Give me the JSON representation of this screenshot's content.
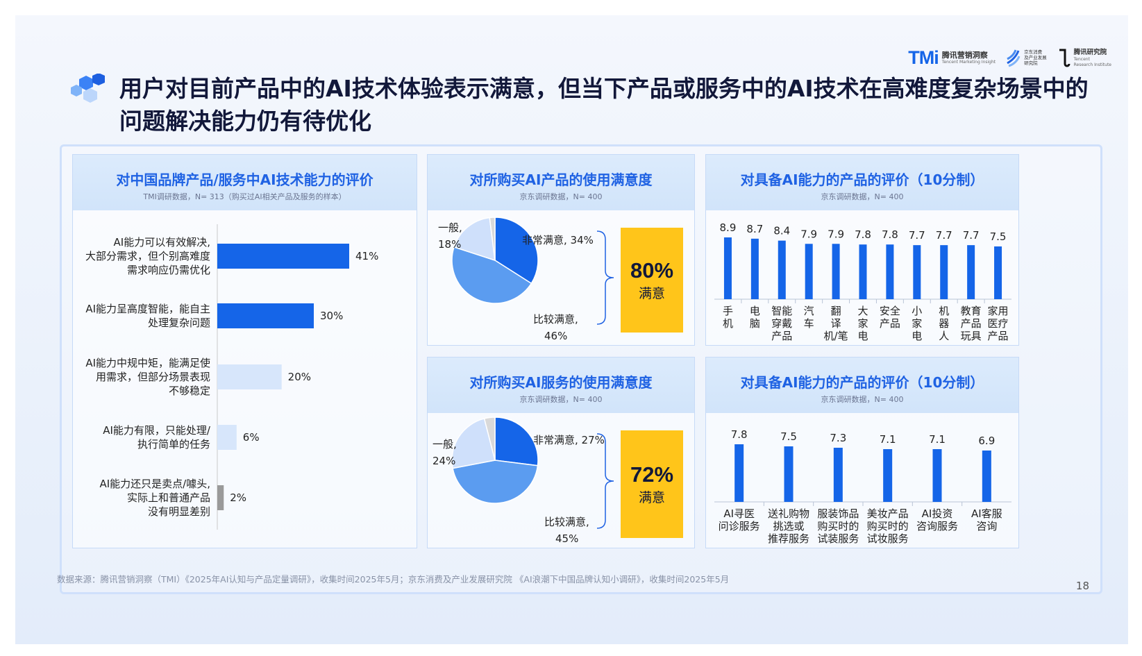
{
  "slide": {
    "title": "用户对目前产品中的AI技术体验表示满意，但当下产品或服务中的AI技术在高难度复杂场景中的问题解决能力仍有待优化",
    "footer": "数据来源：腾讯营销洞察（TMI）《2025年AI认知与产品定量调研》，收集时间2025年5月；京东消费及产业发展研究院 《AI浪潮下中国品牌认知小调研》，收集时间2025年5月",
    "page_number": "18",
    "accent_color": "#1565e8",
    "highlight_color": "#ffc51a"
  },
  "logos": {
    "tmi_mark": "TMi",
    "tmi_name": "腾讯营销洞察",
    "tmi_sub": "Tencent Marketing Insight",
    "jd_name_lines": [
      "京东消费",
      "及产业发展",
      "研究院"
    ],
    "tri_name": "腾讯研究院",
    "tri_sub_lines": [
      "Tencent",
      "Research Institute"
    ]
  },
  "chart_data": [
    {
      "type": "bar",
      "orientation": "horizontal",
      "title": "对中国品牌产品/服务中AI技术能力的评价",
      "subtitle": "TMI调研数据，N= 313（购买过AI相关产品及服务的样本）",
      "categories": [
        [
          "AI能力可以有效解决,",
          "大部分需求，但个别高难度",
          "需求响应仍需优化"
        ],
        [
          "AI能力呈高度智能，能自主",
          "处理复杂问题"
        ],
        [
          "AI能力中规中矩，能满足使",
          "用需求，但部分场景表现",
          "不够稳定"
        ],
        [
          "AI能力有限，只能处理/",
          "执行简单的任务"
        ],
        [
          "AI能力还只是卖点/噱头,",
          "实际上和普通产品",
          "没有明显差别"
        ]
      ],
      "values": [
        41,
        30,
        20,
        6,
        2
      ],
      "value_labels": [
        "41%",
        "30%",
        "20%",
        "6%",
        "2%"
      ],
      "colors": [
        "#1565e8",
        "#1565e8",
        "#d7e6fb",
        "#d7e6fb",
        "#9a9a9a"
      ]
    },
    {
      "type": "pie",
      "title": "对所购买AI产品的使用满意度",
      "subtitle": "京东调研数据，N= 400",
      "slices": [
        {
          "label": "非常满意",
          "value": 34,
          "color": "#1565e8"
        },
        {
          "label": "比较满意",
          "value": 46,
          "color": "#5b9cf0"
        },
        {
          "label": "一般",
          "value": 18,
          "color": "#cfe0fb"
        },
        {
          "label": "other",
          "value": 2,
          "color": "#d9d9d9"
        }
      ],
      "slice_labels": {
        "very": [
          "非常满意, 34%"
        ],
        "fairly": [
          "比较满意,",
          "46%"
        ],
        "normal": [
          "一般,",
          "18%"
        ]
      },
      "summary_value": "80%",
      "summary_label": "满意"
    },
    {
      "type": "bar",
      "orientation": "vertical",
      "title": "对具备AI能力的产品的评价（10分制）",
      "subtitle": "京东调研数据，N= 400",
      "categories": [
        [
          "手",
          "机"
        ],
        [
          "电",
          "脑"
        ],
        [
          "智能",
          "穿戴",
          "产品"
        ],
        [
          "汽",
          "车"
        ],
        [
          "翻",
          "译",
          "机/笔"
        ],
        [
          "大",
          "家",
          "电"
        ],
        [
          "安全",
          "产品"
        ],
        [
          "小",
          "家",
          "电"
        ],
        [
          "机",
          "器",
          "人"
        ],
        [
          "教育",
          "产品",
          "玩具"
        ],
        [
          "家用",
          "医疗",
          "产品"
        ]
      ],
      "values": [
        8.9,
        8.7,
        8.4,
        7.9,
        7.9,
        7.8,
        7.8,
        7.7,
        7.7,
        7.7,
        7.5
      ],
      "value_labels": [
        "8.9",
        "8.7",
        "8.4",
        "7.9",
        "7.9",
        "7.8",
        "7.8",
        "7.7",
        "7.7",
        "7.7",
        "7.5"
      ],
      "color": "#1565e8"
    },
    {
      "type": "pie",
      "title": "对所购买AI服务的使用满意度",
      "subtitle": "京东调研数据，N= 400",
      "slices": [
        {
          "label": "非常满意",
          "value": 27,
          "color": "#1565e8"
        },
        {
          "label": "比较满意",
          "value": 45,
          "color": "#5b9cf0"
        },
        {
          "label": "一般",
          "value": 24,
          "color": "#cfe0fb"
        },
        {
          "label": "other",
          "value": 4,
          "color": "#d9d9d9"
        }
      ],
      "slice_labels": {
        "very": [
          "非常满意, 27%"
        ],
        "fairly": [
          "比较满意,",
          "45%"
        ],
        "normal": [
          "一般,",
          "24%"
        ]
      },
      "summary_value": "72%",
      "summary_label": "满意"
    },
    {
      "type": "bar",
      "orientation": "vertical",
      "title": "对具备AI能力的产品的评价（10分制）",
      "subtitle": "京东调研数据，N= 400",
      "categories": [
        [
          "AI寻医",
          "问诊服务"
        ],
        [
          "送礼购物",
          "挑选或",
          "推荐服务"
        ],
        [
          "服装饰品",
          "购买时的",
          "试装服务"
        ],
        [
          "美妆产品",
          "购买时的",
          "试妆服务"
        ],
        [
          "AI投资",
          "咨询服务"
        ],
        [
          "AI客服",
          "咨询"
        ]
      ],
      "values": [
        7.8,
        7.5,
        7.3,
        7.1,
        7.1,
        6.9
      ],
      "value_labels": [
        "7.8",
        "7.5",
        "7.3",
        "7.1",
        "7.1",
        "6.9"
      ],
      "color": "#1565e8"
    }
  ]
}
